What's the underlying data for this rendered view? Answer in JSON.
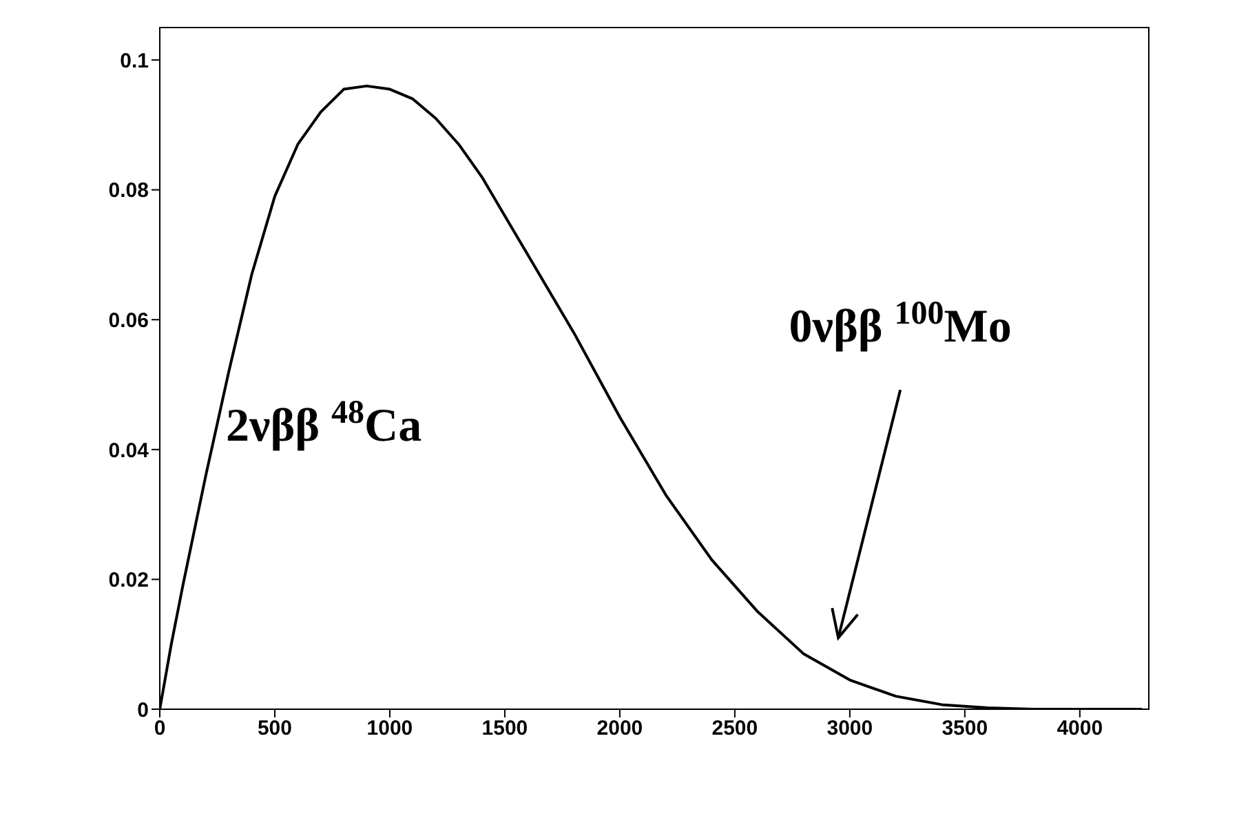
{
  "chart_data": {
    "type": "line",
    "x": [
      0,
      50,
      100,
      200,
      300,
      400,
      500,
      600,
      700,
      800,
      900,
      1000,
      1100,
      1200,
      1300,
      1400,
      1500,
      1600,
      1800,
      2000,
      2200,
      2400,
      2600,
      2800,
      3000,
      3200,
      3400,
      3600,
      3800,
      4000,
      4270
    ],
    "series": [
      {
        "color": "#000000",
        "values": [
          0,
          0.01,
          0.019,
          0.036,
          0.052,
          0.067,
          0.079,
          0.087,
          0.092,
          0.0955,
          0.096,
          0.0955,
          0.094,
          0.091,
          0.087,
          0.082,
          0.076,
          0.07,
          0.058,
          0.045,
          0.033,
          0.023,
          0.015,
          0.0085,
          0.0045,
          0.002,
          0.0007,
          0.0002,
          0,
          0,
          0
        ]
      }
    ],
    "xlim": [
      0,
      4300
    ],
    "xticks": [
      0,
      500,
      1000,
      1500,
      2000,
      2500,
      3000,
      3500,
      4000
    ],
    "ylim": [
      0,
      0.105
    ],
    "yticks": [
      0,
      0.02,
      0.04,
      0.06,
      0.08,
      0.1
    ],
    "grid": false,
    "legend": false,
    "marker": "none",
    "line_style": "solid",
    "annotations": [
      "2νββ $^{48}$Ca",
      "0νββ $^{100}$Mo"
    ]
  }
}
